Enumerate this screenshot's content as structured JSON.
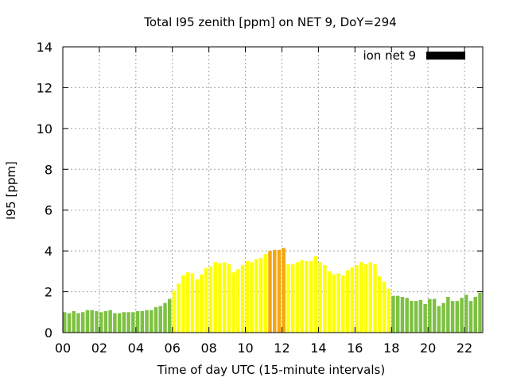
{
  "chart_data": {
    "type": "bar",
    "title": "Total I95 zenith [ppm] on NET 9, DoY=294",
    "xlabel": "Time of day UTC (15-minute intervals)",
    "ylabel": "I95 [ppm]",
    "ylim": [
      0,
      14
    ],
    "xlim_hours": [
      0,
      23
    ],
    "interval_hours": 0.25,
    "grid": true,
    "legend": {
      "position": "top-right",
      "label": "ion net 9",
      "swatch_color": "#000000"
    },
    "x_ticks": [
      "00",
      "02",
      "04",
      "06",
      "08",
      "10",
      "12",
      "14",
      "16",
      "18",
      "20",
      "22"
    ],
    "y_ticks": [
      "0",
      "2",
      "4",
      "6",
      "8",
      "10",
      "12",
      "14"
    ],
    "color_classes": [
      {
        "max": 2,
        "color": "#7dc142"
      },
      {
        "max": 4,
        "color": "#ffff00"
      },
      {
        "max": 6,
        "color": "#f5a70f"
      }
    ],
    "values": [
      1.0,
      0.95,
      1.05,
      0.95,
      1.0,
      1.1,
      1.1,
      1.05,
      1.0,
      1.05,
      1.1,
      0.95,
      0.95,
      1.0,
      1.0,
      1.0,
      1.05,
      1.05,
      1.1,
      1.1,
      1.25,
      1.3,
      1.45,
      1.65,
      2.05,
      2.4,
      2.8,
      2.95,
      2.9,
      2.6,
      2.85,
      3.15,
      3.25,
      3.45,
      3.4,
      3.45,
      3.35,
      2.95,
      3.1,
      3.3,
      3.5,
      3.45,
      3.6,
      3.65,
      3.85,
      4.0,
      4.05,
      4.05,
      4.15,
      3.35,
      3.35,
      3.45,
      3.55,
      3.5,
      3.5,
      3.75,
      3.45,
      3.3,
      3.0,
      2.85,
      2.9,
      2.8,
      3.05,
      3.2,
      3.3,
      3.45,
      3.35,
      3.45,
      3.35,
      2.75,
      2.5,
      2.15,
      1.8,
      1.8,
      1.75,
      1.7,
      1.55,
      1.55,
      1.6,
      1.4,
      1.65,
      1.65,
      1.3,
      1.45,
      1.75,
      1.55,
      1.55,
      1.7,
      1.85,
      1.55,
      1.75,
      1.95
    ]
  }
}
